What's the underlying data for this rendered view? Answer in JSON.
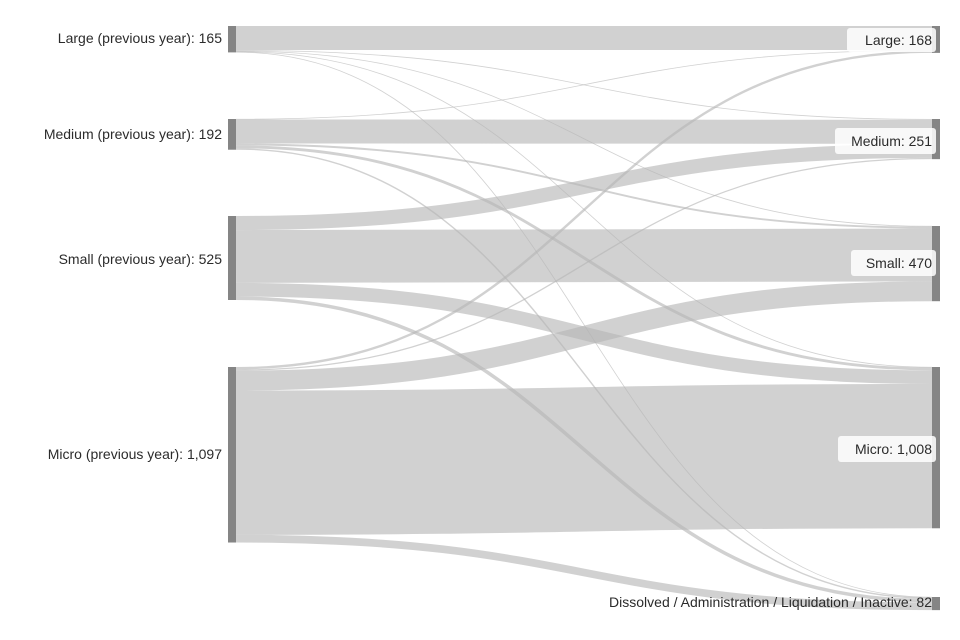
{
  "chart_data": {
    "type": "sankey",
    "source_nodes": [
      {
        "id": "Lp",
        "label": "Large (previous year): 165",
        "value": 165
      },
      {
        "id": "Mp",
        "label": "Medium (previous year): 192",
        "value": 192
      },
      {
        "id": "Sp",
        "label": "Small (previous year): 525",
        "value": 525
      },
      {
        "id": "Up",
        "label": "Micro (previous year): 1,097",
        "value": 1097
      }
    ],
    "target_nodes": [
      {
        "id": "L",
        "label": "Large: 168",
        "value": 168
      },
      {
        "id": "M",
        "label": "Medium: 251",
        "value": 251
      },
      {
        "id": "S",
        "label": "Small: 470",
        "value": 470
      },
      {
        "id": "U",
        "label": "Micro: 1,008",
        "value": 1008
      },
      {
        "id": "D",
        "label": "Dissolved / Administration / Liquidation / Inactive: 82",
        "value": 82
      }
    ],
    "links": [
      {
        "source": "Lp",
        "target": "L",
        "value": 150
      },
      {
        "source": "Lp",
        "target": "M",
        "value": 5
      },
      {
        "source": "Lp",
        "target": "S",
        "value": 4
      },
      {
        "source": "Lp",
        "target": "U",
        "value": 3
      },
      {
        "source": "Lp",
        "target": "D",
        "value": 3
      },
      {
        "source": "Mp",
        "target": "L",
        "value": 3
      },
      {
        "source": "Mp",
        "target": "M",
        "value": 150
      },
      {
        "source": "Mp",
        "target": "S",
        "value": 12
      },
      {
        "source": "Mp",
        "target": "U",
        "value": 18
      },
      {
        "source": "Mp",
        "target": "D",
        "value": 9
      },
      {
        "source": "Sp",
        "target": "M",
        "value": 88
      },
      {
        "source": "Sp",
        "target": "S",
        "value": 330
      },
      {
        "source": "Sp",
        "target": "U",
        "value": 85
      },
      {
        "source": "Sp",
        "target": "D",
        "value": 22
      },
      {
        "source": "Up",
        "target": "L",
        "value": 15
      },
      {
        "source": "Up",
        "target": "M",
        "value": 8
      },
      {
        "source": "Up",
        "target": "S",
        "value": 124
      },
      {
        "source": "Up",
        "target": "U",
        "value": 902
      },
      {
        "source": "Up",
        "target": "D",
        "value": 48
      }
    ]
  }
}
